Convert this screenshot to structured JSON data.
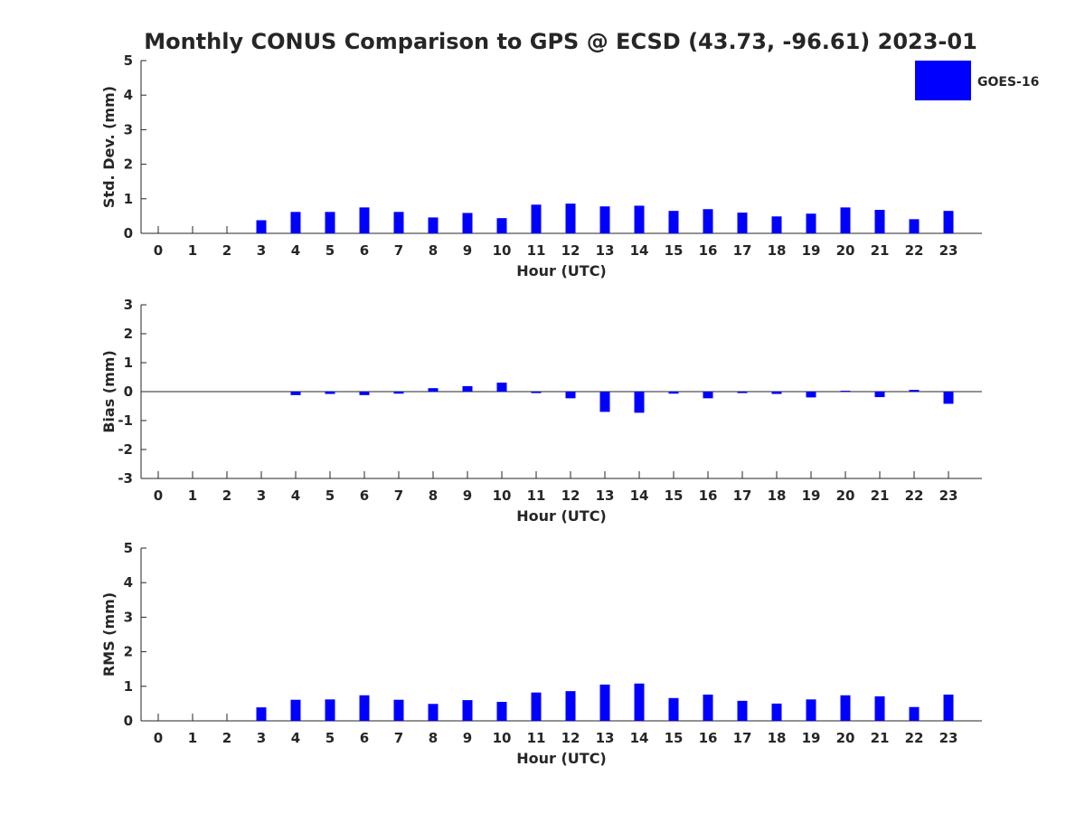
{
  "title": "Monthly CONUS Comparison to GPS @ ECSD (43.73, -96.61) 2023-01",
  "colors": {
    "bar": "#0000ff",
    "axis": "#262626",
    "text": "#262626",
    "background": "#ffffff"
  },
  "legend": {
    "label": "GOES-16",
    "placement": "top-right"
  },
  "chart_data": [
    {
      "type": "bar",
      "xlabel": "Hour (UTC)",
      "ylabel": "Std. Dev. (mm)",
      "ylim": [
        0,
        5
      ],
      "yticks": [
        0,
        1,
        2,
        3,
        4,
        5
      ],
      "categories": [
        "0",
        "1",
        "2",
        "3",
        "4",
        "5",
        "6",
        "7",
        "8",
        "9",
        "10",
        "11",
        "12",
        "13",
        "14",
        "15",
        "16",
        "17",
        "18",
        "19",
        "20",
        "21",
        "22",
        "23"
      ],
      "series": [
        {
          "name": "GOES-16",
          "values": [
            null,
            null,
            null,
            0.38,
            0.62,
            0.62,
            0.75,
            0.62,
            0.46,
            0.59,
            0.44,
            0.83,
            0.86,
            0.78,
            0.8,
            0.65,
            0.7,
            0.6,
            0.49,
            0.57,
            0.75,
            0.68,
            0.41,
            0.65
          ]
        }
      ],
      "grid": false
    },
    {
      "type": "bar",
      "xlabel": "Hour (UTC)",
      "ylabel": "Bias (mm)",
      "ylim": [
        -3,
        3
      ],
      "yticks": [
        -3,
        -2,
        -1,
        0,
        1,
        2,
        3
      ],
      "categories": [
        "0",
        "1",
        "2",
        "3",
        "4",
        "5",
        "6",
        "7",
        "8",
        "9",
        "10",
        "11",
        "12",
        "13",
        "14",
        "15",
        "16",
        "17",
        "18",
        "19",
        "20",
        "21",
        "22",
        "23"
      ],
      "series": [
        {
          "name": "GOES-16",
          "values": [
            null,
            null,
            null,
            null,
            -0.12,
            -0.08,
            -0.12,
            -0.07,
            0.12,
            0.19,
            0.31,
            -0.05,
            -0.23,
            -0.7,
            -0.73,
            -0.07,
            -0.23,
            -0.05,
            -0.08,
            -0.2,
            0.03,
            -0.19,
            0.06,
            -0.42
          ]
        }
      ],
      "grid": false
    },
    {
      "type": "bar",
      "xlabel": "Hour (UTC)",
      "ylabel": "RMS (mm)",
      "ylim": [
        0,
        5
      ],
      "yticks": [
        0,
        1,
        2,
        3,
        4,
        5
      ],
      "categories": [
        "0",
        "1",
        "2",
        "3",
        "4",
        "5",
        "6",
        "7",
        "8",
        "9",
        "10",
        "11",
        "12",
        "13",
        "14",
        "15",
        "16",
        "17",
        "18",
        "19",
        "20",
        "21",
        "22",
        "23"
      ],
      "series": [
        {
          "name": "GOES-16",
          "values": [
            null,
            null,
            null,
            0.39,
            0.61,
            0.62,
            0.74,
            0.61,
            0.49,
            0.6,
            0.55,
            0.82,
            0.86,
            1.05,
            1.08,
            0.66,
            0.76,
            0.58,
            0.5,
            0.62,
            0.74,
            0.71,
            0.4,
            0.76
          ]
        }
      ],
      "grid": false
    }
  ]
}
